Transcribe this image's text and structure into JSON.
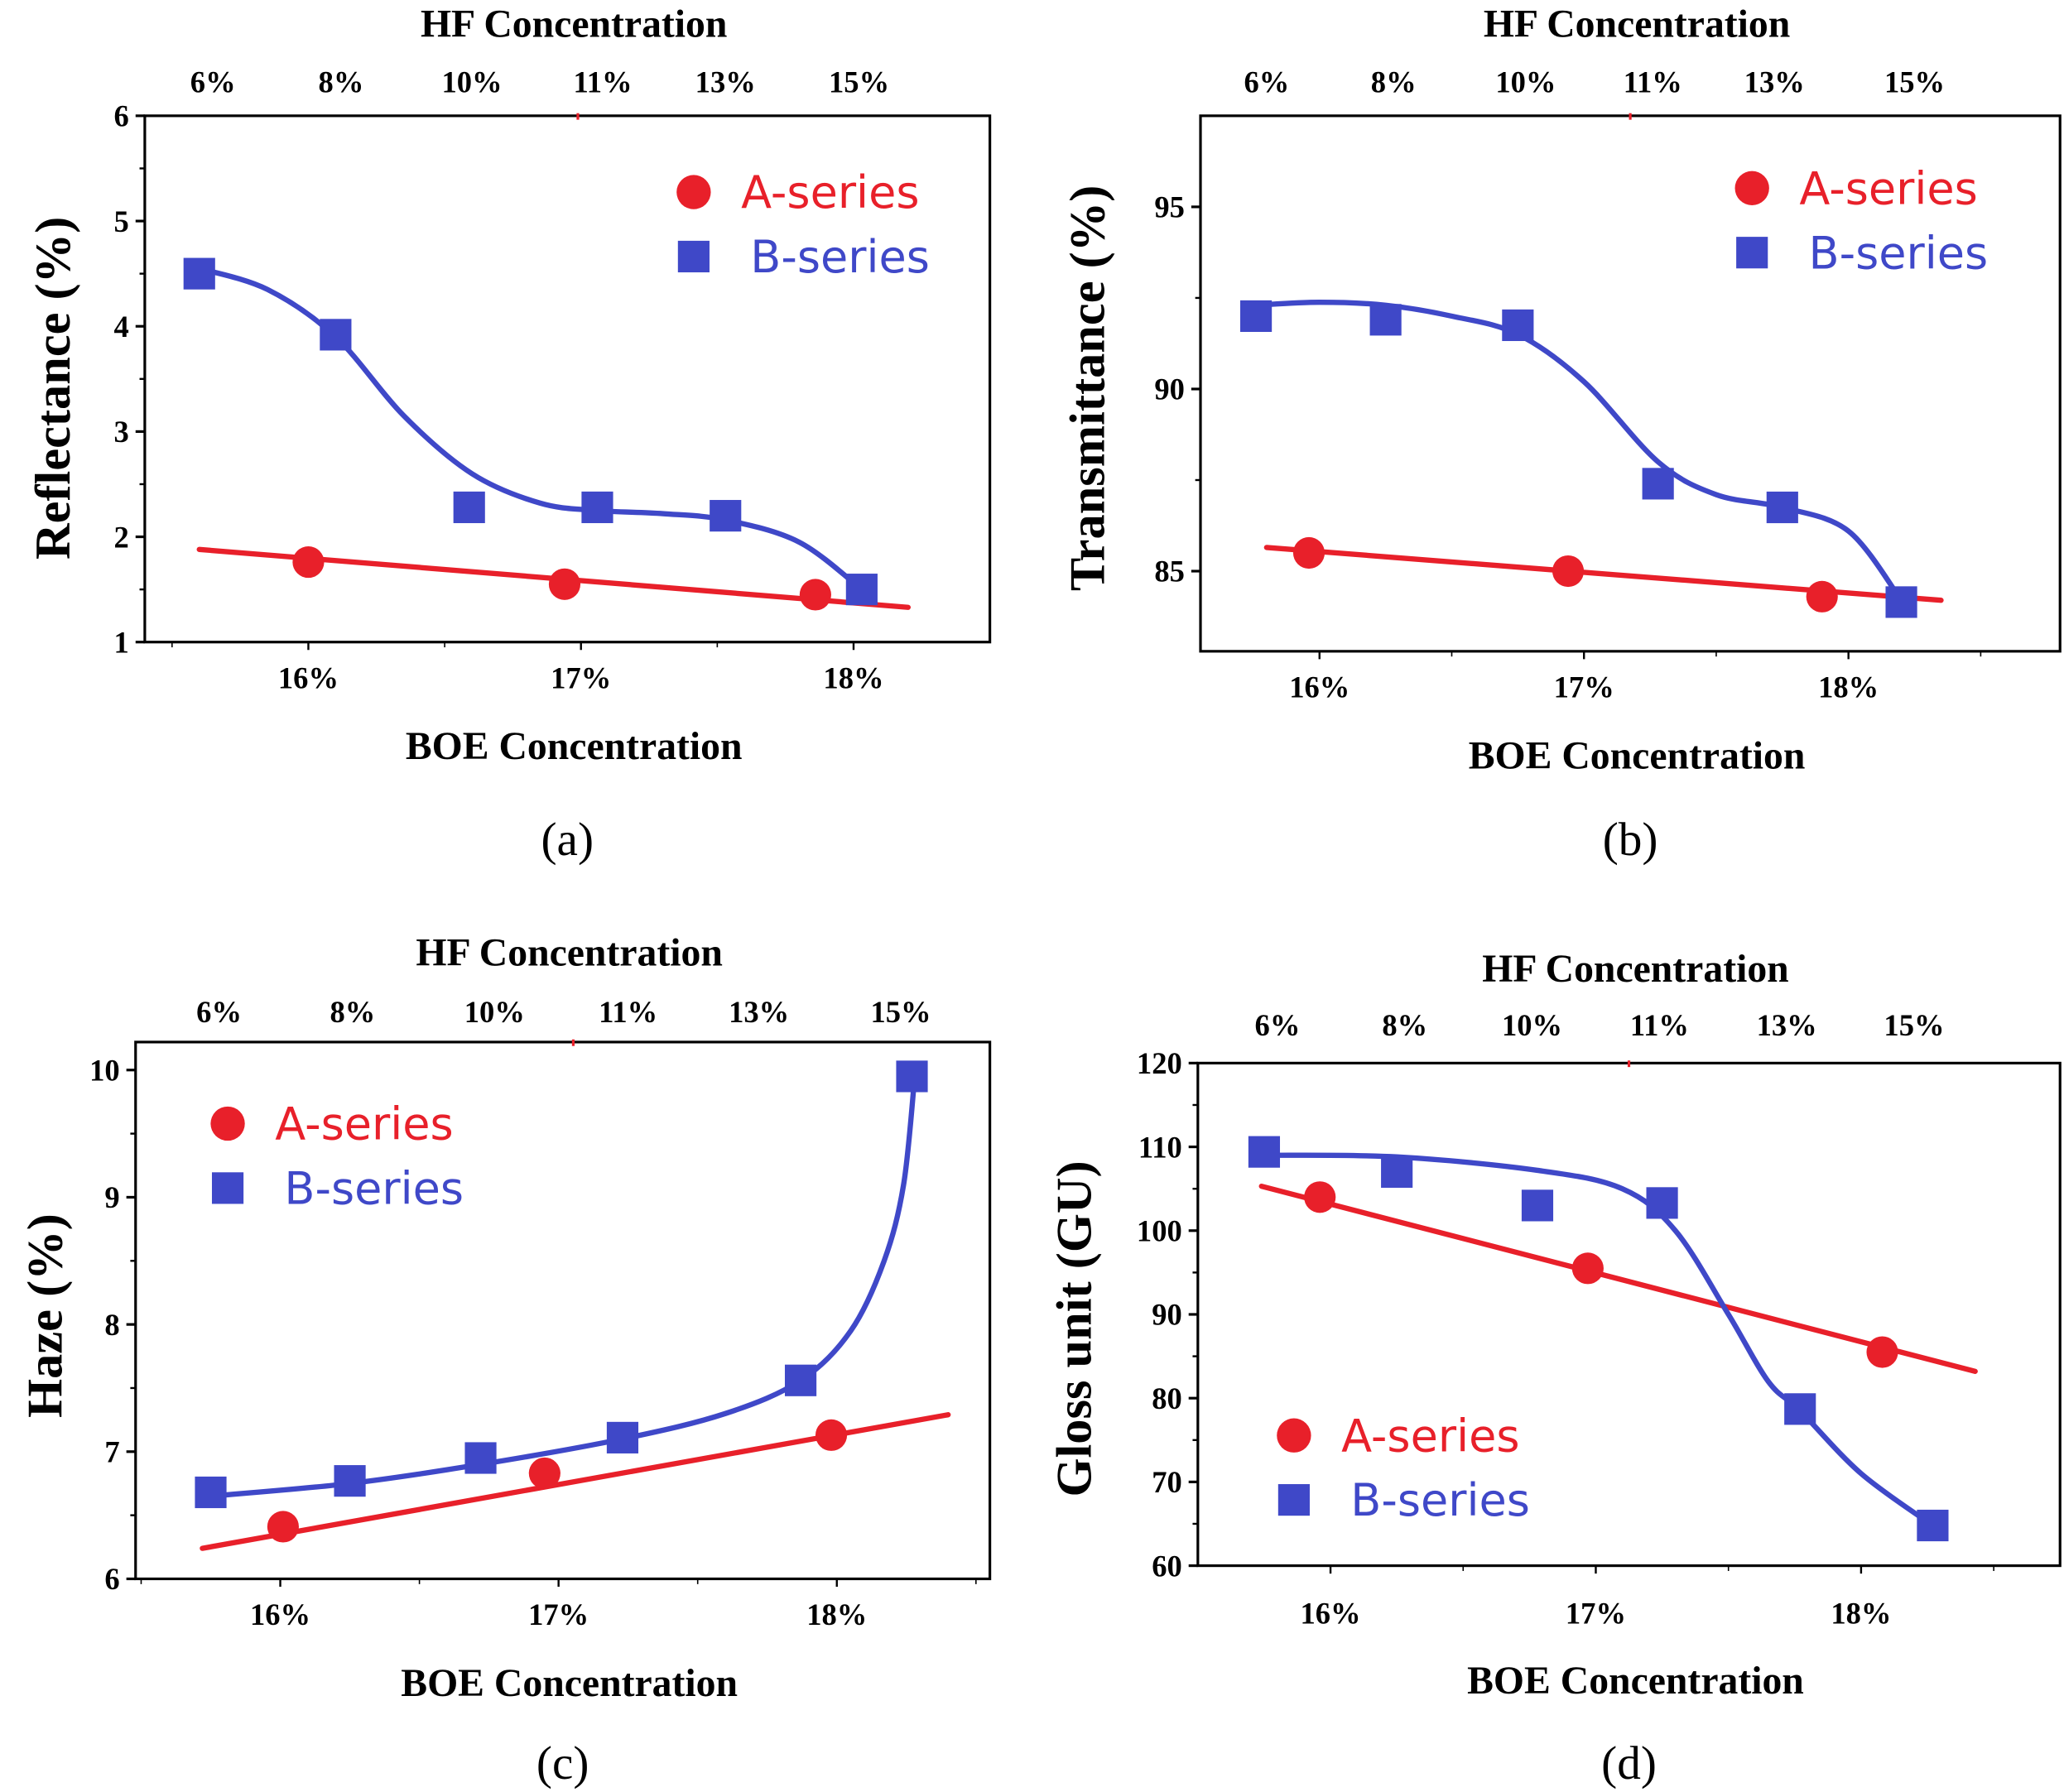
{
  "figure": {
    "colors": {
      "a_series": "#e8202a",
      "b_series": "#3f48c8",
      "axis": "#000000"
    }
  },
  "chart_data": [
    {
      "id": "a",
      "panel_label": "(a)",
      "type": "scatter",
      "title": "",
      "xlabel": "BOE Concentration",
      "x2label": "HF Concentration",
      "ylabel": "Reflectance (%)",
      "xlim": [
        15.4,
        18.5
      ],
      "ylim": [
        1,
        6
      ],
      "yticks": [
        1,
        2,
        3,
        4,
        5,
        6
      ],
      "xticks": [
        {
          "value": 16,
          "label": "16%"
        },
        {
          "value": 17,
          "label": "17%"
        },
        {
          "value": 18,
          "label": "18%"
        }
      ],
      "x2ticks": [
        {
          "value": 15.65,
          "label": "6%"
        },
        {
          "value": 16.12,
          "label": "8%"
        },
        {
          "value": 16.6,
          "label": "10%"
        },
        {
          "value": 17.08,
          "label": "11%"
        },
        {
          "value": 17.53,
          "label": "13%"
        },
        {
          "value": 18.02,
          "label": "15%"
        }
      ],
      "legend": {
        "position": "top-right",
        "entries": [
          "A-series",
          "B-series"
        ]
      },
      "grid": false,
      "series": [
        {
          "name": "A-series",
          "marker": "circle",
          "x": [
            16.0,
            16.94,
            17.86
          ],
          "y": [
            1.76,
            1.55,
            1.45
          ],
          "fit": {
            "kind": "linear",
            "x": [
              15.6,
              18.2
            ],
            "y": [
              1.88,
              1.33
            ]
          }
        },
        {
          "name": "B-series",
          "marker": "square",
          "x": [
            15.6,
            16.1,
            16.59,
            17.06,
            17.53,
            18.03
          ],
          "y": [
            4.5,
            3.92,
            2.28,
            2.28,
            2.2,
            1.5
          ],
          "fit": {
            "kind": "smooth",
            "x": [
              15.6,
              15.85,
              16.1,
              16.35,
              16.6,
              16.85,
              17.06,
              17.3,
              17.53,
              17.8,
              18.03
            ],
            "y": [
              4.55,
              4.35,
              3.9,
              3.15,
              2.6,
              2.32,
              2.25,
              2.22,
              2.16,
              1.95,
              1.5
            ]
          }
        }
      ]
    },
    {
      "id": "b",
      "panel_label": "(b)",
      "type": "scatter",
      "title": "",
      "xlabel": "BOE Concentration",
      "x2label": "HF Concentration",
      "ylabel": "Transmittance (%)",
      "xlim": [
        15.55,
        18.8
      ],
      "ylim": [
        82.8,
        97.5
      ],
      "yticks": [
        85,
        90,
        95
      ],
      "xticks": [
        {
          "value": 16,
          "label": "16%"
        },
        {
          "value": 17,
          "label": "17%"
        },
        {
          "value": 18,
          "label": "18%"
        }
      ],
      "x2ticks": [
        {
          "value": 15.8,
          "label": "6%"
        },
        {
          "value": 16.28,
          "label": "8%"
        },
        {
          "value": 16.78,
          "label": "10%"
        },
        {
          "value": 17.26,
          "label": "11%"
        },
        {
          "value": 17.72,
          "label": "13%"
        },
        {
          "value": 18.25,
          "label": "15%"
        }
      ],
      "legend": {
        "position": "top-right",
        "entries": [
          "A-series",
          "B-series"
        ]
      },
      "grid": false,
      "series": [
        {
          "name": "A-series",
          "marker": "circle",
          "x": [
            15.96,
            16.94,
            17.9
          ],
          "y": [
            85.5,
            85.0,
            84.3
          ],
          "fit": {
            "kind": "linear",
            "x": [
              15.8,
              18.35
            ],
            "y": [
              85.65,
              84.2
            ]
          }
        },
        {
          "name": "B-series",
          "marker": "square",
          "x": [
            15.76,
            16.25,
            16.75,
            17.28,
            17.75,
            18.2
          ],
          "y": [
            92.0,
            91.9,
            91.75,
            87.4,
            86.75,
            84.15
          ],
          "fit": {
            "kind": "smooth",
            "x": [
              15.76,
              16.0,
              16.25,
              16.5,
              16.75,
              17.0,
              17.28,
              17.5,
              17.75,
              18.0,
              18.2
            ],
            "y": [
              92.3,
              92.38,
              92.3,
              92.0,
              91.5,
              90.2,
              88.0,
              87.1,
              86.75,
              86.1,
              84.2
            ]
          }
        }
      ]
    },
    {
      "id": "c",
      "panel_label": "(c)",
      "type": "scatter",
      "title": "",
      "xlabel": "BOE Concentration",
      "x2label": "HF Concentration",
      "ylabel": "Haze (%)",
      "xlim": [
        15.48,
        18.55
      ],
      "ylim": [
        6,
        10.22
      ],
      "yticks": [
        6,
        7,
        8,
        9,
        10
      ],
      "xticks": [
        {
          "value": 16,
          "label": "16%"
        },
        {
          "value": 17,
          "label": "17%"
        },
        {
          "value": 18,
          "label": "18%"
        }
      ],
      "x2ticks": [
        {
          "value": 15.78,
          "label": "6%"
        },
        {
          "value": 16.26,
          "label": "8%"
        },
        {
          "value": 16.77,
          "label": "10%"
        },
        {
          "value": 17.25,
          "label": "11%"
        },
        {
          "value": 17.72,
          "label": "13%"
        },
        {
          "value": 18.23,
          "label": "15%"
        }
      ],
      "legend": {
        "position": "top-left",
        "entries": [
          "A-series",
          "B-series"
        ]
      },
      "grid": false,
      "series": [
        {
          "name": "A-series",
          "marker": "circle",
          "x": [
            16.01,
            16.95,
            17.98
          ],
          "y": [
            6.41,
            6.83,
            7.13
          ],
          "fit": {
            "kind": "linear",
            "x": [
              15.72,
              18.4
            ],
            "y": [
              6.24,
              7.29
            ]
          }
        },
        {
          "name": "B-series",
          "marker": "square",
          "x": [
            15.75,
            16.25,
            16.72,
            17.23,
            17.87,
            18.27
          ],
          "y": [
            6.68,
            6.77,
            6.95,
            7.11,
            7.56,
            9.95
          ],
          "fit": {
            "kind": "smooth",
            "x": [
              15.75,
              16.25,
              16.72,
              17.23,
              17.6,
              17.87,
              18.05,
              18.17,
              18.24,
              18.28
            ],
            "y": [
              6.65,
              6.75,
              6.9,
              7.1,
              7.3,
              7.56,
              7.95,
              8.5,
              9.1,
              9.95
            ]
          }
        }
      ]
    },
    {
      "id": "d",
      "panel_label": "(d)",
      "type": "scatter",
      "title": "",
      "xlabel": "BOE Concentration",
      "x2label": "HF Concentration",
      "ylabel": "Gloss unit (GU)",
      "xlim": [
        15.5,
        18.75
      ],
      "ylim": [
        60,
        120
      ],
      "yticks": [
        60,
        70,
        80,
        90,
        100,
        110,
        120
      ],
      "xticks": [
        {
          "value": 16,
          "label": "16%"
        },
        {
          "value": 17,
          "label": "17%"
        },
        {
          "value": 18,
          "label": "18%"
        }
      ],
      "x2ticks": [
        {
          "value": 15.8,
          "label": "6%"
        },
        {
          "value": 16.28,
          "label": "8%"
        },
        {
          "value": 16.76,
          "label": "10%"
        },
        {
          "value": 17.24,
          "label": "11%"
        },
        {
          "value": 17.72,
          "label": "13%"
        },
        {
          "value": 18.2,
          "label": "15%"
        }
      ],
      "legend": {
        "position": "bottom-left",
        "entries": [
          "A-series",
          "B-series"
        ]
      },
      "grid": false,
      "series": [
        {
          "name": "A-series",
          "marker": "circle",
          "x": [
            15.96,
            16.97,
            18.08
          ],
          "y": [
            104,
            95.5,
            85.5
          ],
          "fit": {
            "kind": "linear",
            "x": [
              15.74,
              18.43
            ],
            "y": [
              105.3,
              83.2
            ]
          }
        },
        {
          "name": "B-series",
          "marker": "square",
          "x": [
            15.75,
            16.25,
            16.78,
            17.25,
            17.77,
            18.27
          ],
          "y": [
            109.4,
            107,
            103,
            103.3,
            78.7,
            64.8
          ],
          "fit": {
            "kind": "smooth",
            "x": [
              15.75,
              16.25,
              16.78,
              17.1,
              17.3,
              17.5,
              17.65,
              17.77,
              18.0,
              18.27
            ],
            "y": [
              109,
              108.8,
              107.2,
              105,
              100,
              90,
              82,
              78.5,
              71,
              64.8
            ]
          }
        }
      ]
    }
  ]
}
